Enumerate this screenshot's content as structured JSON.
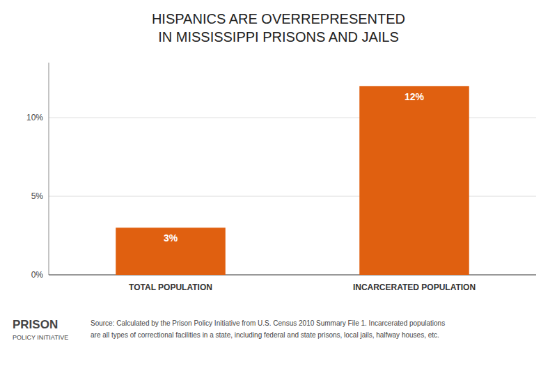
{
  "chart_data": {
    "type": "bar",
    "title": "HISPANICS ARE OVERREPRESENTED",
    "subtitle": "IN MISSISSIPPI PRISONS AND JAILS",
    "categories": [
      "TOTAL POPULATION",
      "INCARCERATED POPULATION"
    ],
    "values": [
      3,
      12
    ],
    "value_labels": [
      "3%",
      "12%"
    ],
    "data_labels": true,
    "color": "#e06010",
    "ylim": [
      0,
      13.5
    ],
    "yticks": [
      {
        "value": 0,
        "label": "0%"
      },
      {
        "value": 5,
        "label": "5%"
      },
      {
        "value": 10,
        "label": "10%"
      }
    ],
    "grid": true,
    "annotations": [
      "PRISON",
      "POLICY INITIATIVE",
      "Source: Calculated by the Prison Policy Initiative from U.S. Census 2010 Summary File 1. Incarcerated populations",
      "are all types of correctional facilities in a state, including federal and state prisons, local jails, halfway houses, etc."
    ]
  }
}
